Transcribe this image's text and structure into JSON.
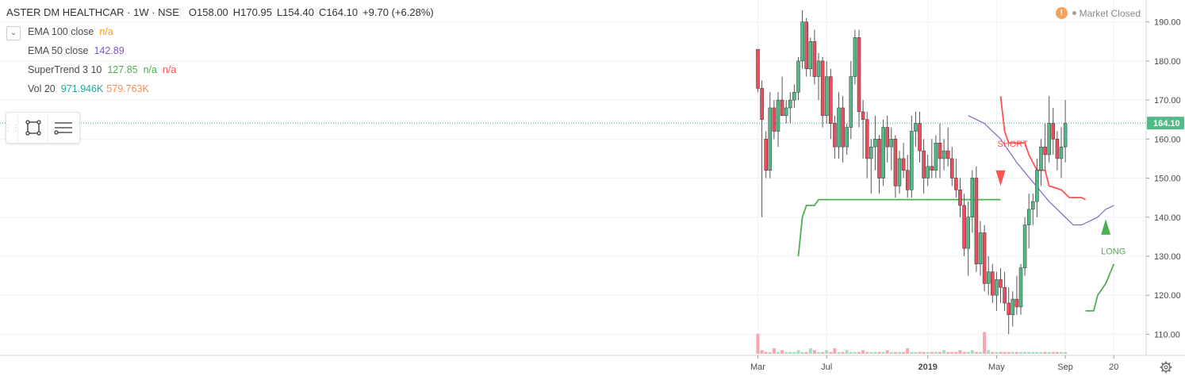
{
  "header": {
    "symbol": "ASTER DM HEALTHCAR · 1W · NSE",
    "ohlc": {
      "o_label": "O",
      "o": "158.00",
      "h_label": "H",
      "h": "170.95",
      "l_label": "L",
      "l": "154.40",
      "c_label": "C",
      "c": "164.10",
      "change": "+9.70 (+6.28%)"
    }
  },
  "indicators": [
    {
      "label": "EMA 100 close",
      "values": [
        "n/a"
      ]
    },
    {
      "label": "EMA 50 close",
      "values": [
        "142.89"
      ]
    },
    {
      "label": "SuperTrend 3 10",
      "values": [
        "127.85",
        "n/a",
        "n/a"
      ]
    },
    {
      "label": "Vol 20",
      "values": [
        "971.946K",
        "579.763K"
      ]
    }
  ],
  "status": {
    "warning_icon": "!",
    "market": "Market Closed"
  },
  "toolbar": {
    "icons": [
      "drag-grip-icon",
      "rectangle-tool-icon",
      "horizontal-lines-tool-icon"
    ]
  },
  "colors": {
    "up": "#53b987",
    "down": "#eb4d5c",
    "ema50": "#7e57c2",
    "ema100": "#ff9800",
    "supertrend_up": "#4caf50",
    "supertrend_down": "#ff5252",
    "vol_ma_teal": "#26a69a",
    "vol_ma_orange": "#ff8a50",
    "price_label_bg": "#53b987",
    "last_price_line": "#26a69a"
  },
  "chart_data": {
    "type": "candlestick",
    "timeframe": "1W",
    "ylim": [
      105,
      194
    ],
    "y_ticks": [
      "110.00",
      "120.00",
      "130.00",
      "140.00",
      "150.00",
      "160.00",
      "170.00",
      "180.00",
      "190.00"
    ],
    "x_tick_labels": [
      "Mar",
      "Jul",
      "2019",
      "May",
      "Sep",
      "20"
    ],
    "x_ticks_week_index": [
      0,
      17,
      42,
      59,
      76,
      88
    ],
    "last_price_label": "164.10",
    "annotations": [
      {
        "text": "SHORT",
        "week": 60,
        "color": "#ff5252"
      },
      {
        "text": "LONG",
        "week": 86,
        "color": "#4caf50"
      }
    ],
    "candles": [
      [
        183,
        183,
        172,
        173
      ],
      [
        173,
        175,
        140,
        165
      ],
      [
        160,
        162,
        150,
        152
      ],
      [
        152,
        172,
        150,
        168
      ],
      [
        168,
        170,
        160,
        162
      ],
      [
        162,
        172,
        158,
        170
      ],
      [
        170,
        176,
        166,
        166
      ],
      [
        166,
        170,
        164,
        168
      ],
      [
        168,
        172,
        164,
        170
      ],
      [
        170,
        174,
        168,
        172
      ],
      [
        172,
        181,
        170,
        180
      ],
      [
        180,
        193,
        178,
        190
      ],
      [
        190,
        191,
        176,
        178
      ],
      [
        178,
        186,
        176,
        185
      ],
      [
        185,
        188,
        174,
        176
      ],
      [
        176,
        182,
        170,
        180
      ],
      [
        180,
        181,
        163,
        166
      ],
      [
        166,
        180,
        164,
        176
      ],
      [
        176,
        178,
        160,
        164
      ],
      [
        164,
        166,
        155,
        158
      ],
      [
        158,
        172,
        155,
        168
      ],
      [
        168,
        171,
        154,
        158
      ],
      [
        158,
        164,
        156,
        163
      ],
      [
        163,
        180,
        160,
        176
      ],
      [
        176,
        188,
        174,
        186
      ],
      [
        186,
        188,
        163,
        167
      ],
      [
        167,
        170,
        155,
        165
      ],
      [
        165,
        167,
        150,
        155
      ],
      [
        155,
        160,
        146,
        158
      ],
      [
        158,
        166,
        152,
        160
      ],
      [
        160,
        161,
        146,
        150
      ],
      [
        150,
        165,
        148,
        163
      ],
      [
        163,
        166,
        154,
        158
      ],
      [
        158,
        163,
        152,
        160
      ],
      [
        160,
        161,
        145,
        148
      ],
      [
        148,
        157,
        146,
        155
      ],
      [
        155,
        159,
        150,
        152
      ],
      [
        152,
        156,
        145,
        147
      ],
      [
        147,
        166,
        145,
        162
      ],
      [
        162,
        167,
        158,
        164
      ],
      [
        164,
        167,
        154,
        157
      ],
      [
        157,
        160,
        146,
        150
      ],
      [
        150,
        156,
        148,
        153
      ],
      [
        153,
        160,
        150,
        152
      ],
      [
        152,
        161,
        150,
        159
      ],
      [
        159,
        164,
        150,
        155
      ],
      [
        155,
        160,
        152,
        157
      ],
      [
        157,
        163,
        153,
        155
      ],
      [
        155,
        158,
        148,
        150
      ],
      [
        150,
        155,
        145,
        147
      ],
      [
        147,
        150,
        140,
        143
      ],
      [
        143,
        146,
        130,
        132
      ],
      [
        132,
        144,
        125,
        140
      ],
      [
        140,
        152,
        136,
        150
      ],
      [
        150,
        153,
        126,
        128
      ],
      [
        128,
        139,
        125,
        136
      ],
      [
        136,
        138,
        121,
        123
      ],
      [
        123,
        130,
        120,
        126
      ],
      [
        126,
        128,
        118,
        120
      ],
      [
        120,
        126,
        116,
        124
      ],
      [
        124,
        127,
        118,
        122
      ],
      [
        122,
        126,
        116,
        118
      ],
      [
        118,
        122,
        110,
        115
      ],
      [
        115,
        121,
        112,
        119
      ],
      [
        119,
        125,
        115,
        117
      ],
      [
        117,
        128,
        115,
        127
      ],
      [
        127,
        140,
        125,
        138
      ],
      [
        138,
        146,
        132,
        142
      ],
      [
        142,
        146,
        138,
        144
      ],
      [
        144,
        155,
        140,
        152
      ],
      [
        152,
        160,
        148,
        158
      ],
      [
        158,
        164,
        152,
        156
      ],
      [
        156,
        171,
        154,
        164
      ],
      [
        164,
        168,
        156,
        160
      ],
      [
        160,
        162,
        152,
        155
      ],
      [
        155,
        163,
        150,
        158
      ],
      [
        158,
        170,
        154,
        164
      ]
    ],
    "volume": [
      11,
      2,
      1,
      1,
      3,
      1,
      2,
      1,
      1,
      1,
      2,
      1,
      1,
      3,
      2,
      1,
      1,
      2,
      1,
      3,
      1,
      1,
      2,
      1,
      1,
      1,
      2,
      1,
      1,
      1,
      1,
      1,
      2,
      1,
      1,
      1,
      1,
      3,
      1,
      1,
      1,
      1,
      1,
      1,
      1,
      1,
      2,
      1,
      1,
      1,
      2,
      1,
      1,
      2,
      1,
      1,
      12,
      2,
      1,
      1,
      1,
      1,
      1,
      1,
      1,
      1,
      1,
      1,
      1,
      1,
      1,
      1,
      1,
      1,
      1,
      1,
      1
    ],
    "ema50": [
      [
        52,
        166
      ],
      [
        56,
        164
      ],
      [
        60,
        160
      ],
      [
        64,
        154
      ],
      [
        68,
        149
      ],
      [
        72,
        144
      ],
      [
        76,
        140
      ],
      [
        78,
        138
      ],
      [
        80,
        138
      ],
      [
        82,
        139
      ],
      [
        84,
        140
      ],
      [
        86,
        142
      ],
      [
        88,
        143
      ]
    ],
    "supertrend_up": [
      [
        10,
        130
      ],
      [
        11,
        140
      ],
      [
        12,
        143
      ],
      [
        14,
        143
      ],
      [
        15,
        144.5
      ],
      [
        60,
        144.5
      ]
    ],
    "supertrend_down": [
      [
        60,
        171
      ],
      [
        61,
        162
      ],
      [
        62,
        159
      ],
      [
        66,
        159
      ],
      [
        67,
        156
      ],
      [
        69,
        152
      ],
      [
        71,
        152
      ],
      [
        72,
        148
      ],
      [
        75,
        147
      ],
      [
        77,
        145
      ],
      [
        80,
        145
      ],
      [
        81,
        144.5
      ]
    ],
    "supertrend_up2": [
      [
        81,
        116
      ],
      [
        83,
        116
      ],
      [
        84,
        120
      ],
      [
        86,
        123
      ],
      [
        88,
        128
      ]
    ]
  }
}
